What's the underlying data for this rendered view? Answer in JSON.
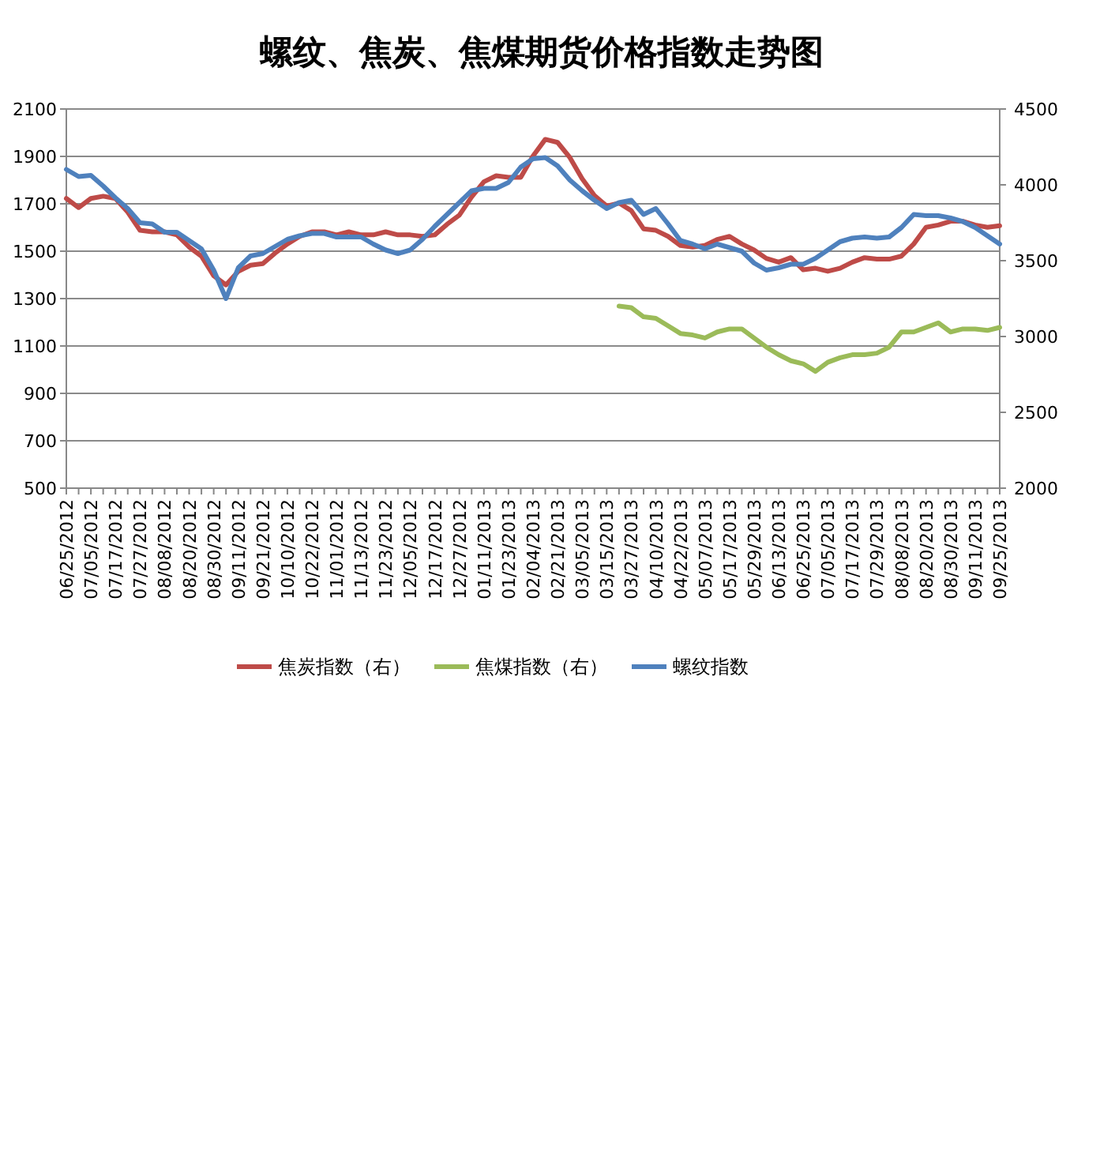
{
  "chart_data": {
    "type": "line",
    "title": "螺纹、焦炭、焦煤期货价格指数走势图",
    "categories": [
      "06/25/2012",
      null,
      "07/05/2012",
      null,
      "07/17/2012",
      null,
      "07/27/2012",
      null,
      "08/08/2012",
      null,
      "08/20/2012",
      null,
      "08/30/2012",
      null,
      "09/11/2012",
      null,
      "09/21/2012",
      null,
      "10/10/2012",
      null,
      "10/22/2012",
      null,
      "11/01/2012",
      null,
      "11/13/2012",
      null,
      "11/23/2012",
      null,
      "12/05/2012",
      null,
      "12/17/2012",
      null,
      "12/27/2012",
      null,
      "01/11/2013",
      null,
      "01/23/2013",
      null,
      "02/04/2013",
      null,
      "02/21/2013",
      null,
      "03/05/2013",
      null,
      "03/15/2013",
      null,
      "03/27/2013",
      null,
      "04/10/2013",
      null,
      "04/22/2013",
      null,
      "05/07/2013",
      null,
      "05/17/2013",
      null,
      "05/29/2013",
      null,
      "06/13/2013",
      null,
      "06/25/2013",
      null,
      "07/05/2013",
      null,
      "07/17/2013",
      null,
      "07/29/2013",
      null,
      "08/08/2013",
      null,
      "08/20/2013",
      null,
      "08/30/2013",
      null,
      "09/11/2013",
      null,
      "09/25/2013"
    ],
    "series": [
      {
        "name": "焦炭指数（右）",
        "color": "#be4b48",
        "axis": "y2",
        "values": [
          3910,
          3850,
          3910,
          3925,
          3910,
          3820,
          3700,
          3690,
          3690,
          3670,
          3590,
          3530,
          3400,
          3340,
          3430,
          3470,
          3480,
          3550,
          3610,
          3660,
          3690,
          3690,
          3670,
          3690,
          3670,
          3670,
          3690,
          3670,
          3670,
          3660,
          3670,
          3740,
          3800,
          3920,
          4020,
          4060,
          4050,
          4050,
          4190,
          4300,
          4280,
          4180,
          4040,
          3930,
          3860,
          3880,
          3830,
          3710,
          3700,
          3660,
          3600,
          3590,
          3600,
          3640,
          3660,
          3610,
          3570,
          3515,
          3490,
          3520,
          3440,
          3450,
          3430,
          3450,
          3490,
          3520,
          3510,
          3510,
          3530,
          3610,
          3720,
          3735,
          3760,
          3760,
          3735,
          3720,
          3730
        ]
      },
      {
        "name": "焦煤指数（右）",
        "color": "#9bbb59",
        "axis": "y2",
        "values": [
          null,
          null,
          null,
          null,
          null,
          null,
          null,
          null,
          null,
          null,
          null,
          null,
          null,
          null,
          null,
          null,
          null,
          null,
          null,
          null,
          null,
          null,
          null,
          null,
          null,
          null,
          null,
          null,
          null,
          null,
          null,
          null,
          null,
          null,
          null,
          null,
          null,
          null,
          null,
          null,
          null,
          null,
          null,
          null,
          null,
          3200,
          3190,
          3130,
          3120,
          3070,
          3020,
          3010,
          2990,
          3030,
          3050,
          3050,
          2990,
          2930,
          2880,
          2840,
          2820,
          2770,
          2830,
          2860,
          2880,
          2880,
          2890,
          2930,
          3030,
          3030,
          3060,
          3090,
          3030,
          3050,
          3050,
          3040,
          3060
        ]
      },
      {
        "name": "螺纹指数",
        "color": "#4f81bd",
        "values": [
          1845,
          1815,
          1820,
          1775,
          1725,
          1680,
          1620,
          1615,
          1580,
          1580,
          1545,
          1510,
          1420,
          1300,
          1430,
          1480,
          1490,
          1520,
          1550,
          1565,
          1575,
          1575,
          1560,
          1560,
          1560,
          1530,
          1505,
          1490,
          1505,
          1550,
          1605,
          1655,
          1705,
          1755,
          1765,
          1765,
          1790,
          1855,
          1890,
          1895,
          1860,
          1800,
          1755,
          1715,
          1680,
          1705,
          1715,
          1655,
          1680,
          1615,
          1545,
          1530,
          1510,
          1530,
          1515,
          1500,
          1450,
          1420,
          1430,
          1445,
          1445,
          1470,
          1505,
          1540,
          1555,
          1560,
          1555,
          1560,
          1600,
          1655,
          1650,
          1650,
          1640,
          1625,
          1600,
          1565,
          1530
        ]
      }
    ],
    "ylim": [
      500,
      2100
    ],
    "yticks": [
      500,
      700,
      900,
      1100,
      1300,
      1500,
      1700,
      1900,
      2100
    ],
    "y2lim": [
      2000,
      4500
    ],
    "y2ticks": [
      2000,
      2500,
      3000,
      3500,
      4000,
      4500
    ],
    "grid": "y",
    "legend": "bottom"
  }
}
